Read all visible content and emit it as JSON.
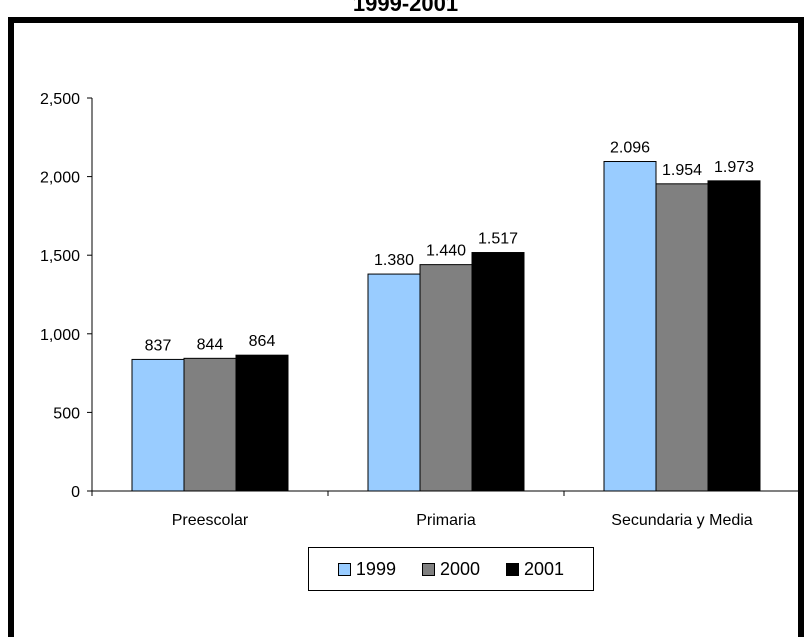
{
  "chart_data": {
    "type": "bar",
    "title": "1999-2001",
    "categories": [
      "Preescolar",
      "Primaria",
      "Secundaria y Media"
    ],
    "series": [
      {
        "name": "1999",
        "color": "#99ccff",
        "values": [
          837,
          1380,
          2096
        ],
        "labels": [
          "837",
          "1.380",
          "2.096"
        ]
      },
      {
        "name": "2000",
        "color": "#808080",
        "values": [
          844,
          1440,
          1954
        ],
        "labels": [
          "844",
          "1.440",
          "1.954"
        ]
      },
      {
        "name": "2001",
        "color": "#000000",
        "values": [
          864,
          1517,
          1973
        ],
        "labels": [
          "864",
          "1.517",
          "1.973"
        ]
      }
    ],
    "yticks": [
      0,
      500,
      1000,
      1500,
      2000,
      2500
    ],
    "ytick_labels": [
      "0",
      "500",
      "1,000",
      "1,500",
      "2,000",
      "2,500"
    ],
    "ylim": [
      0,
      2500
    ],
    "grid": false,
    "legend_position": "bottom"
  }
}
